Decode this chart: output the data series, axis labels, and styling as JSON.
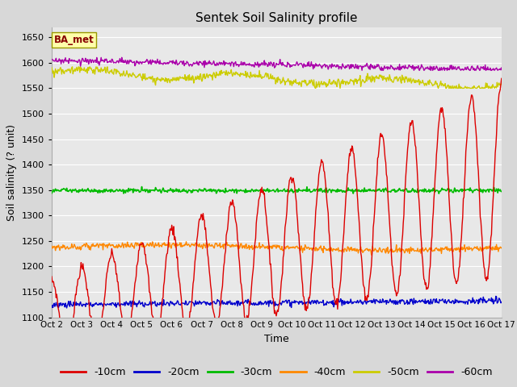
{
  "title": "Sentek Soil Salinity profile",
  "xlabel": "Time",
  "ylabel": "Soil salinity (? unit)",
  "ylim": [
    1100,
    1670
  ],
  "yticks": [
    1100,
    1150,
    1200,
    1250,
    1300,
    1350,
    1400,
    1450,
    1500,
    1550,
    1600,
    1650
  ],
  "x_labels": [
    "Oct 2",
    "Oct 3",
    "Oct 4",
    "Oct 5",
    "Oct 6",
    "Oct 7",
    "Oct 8",
    "Oct 9",
    "Oct 10",
    "Oct 11",
    "Oct 12",
    "Oct 13",
    "Oct 14",
    "Oct 15",
    "Oct 16",
    "Oct 17"
  ],
  "legend_label": "BA_met",
  "series": {
    "-10cm": {
      "color": "#dd0000"
    },
    "-20cm": {
      "color": "#0000cc"
    },
    "-30cm": {
      "color": "#00bb00"
    },
    "-40cm": {
      "color": "#ff8800"
    },
    "-50cm": {
      "color": "#cccc00"
    },
    "-60cm": {
      "color": "#aa00aa"
    }
  },
  "background_color": "#d8d8d8",
  "plot_bg_color": "#e8e8e8",
  "grid_color": "#ffffff"
}
